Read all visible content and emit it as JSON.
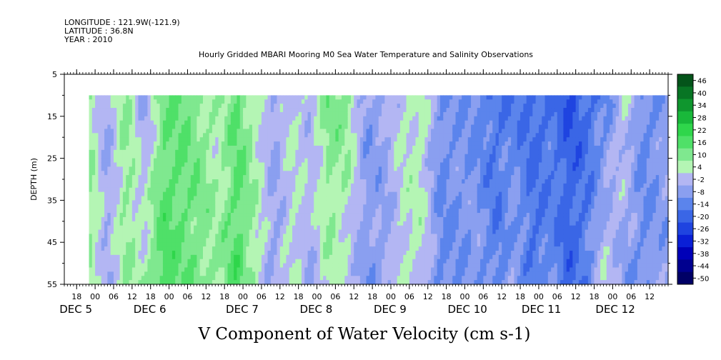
{
  "header": {
    "longitude": "LONGITUDE : 121.9W(-121.9)",
    "latitude": "LATITUDE : 36.8N",
    "year": "YEAR : 2010"
  },
  "chart_data": {
    "type": "heatmap",
    "title": "Hourly Gridded MBARI Mooring M0 Sea Water Temperature and Salinity Observations",
    "variable_title": "V Component of Water Velocity (cm s-1)",
    "ylabel": "DEPTH (m)",
    "y_ticks": [
      5,
      15,
      25,
      35,
      45,
      55
    ],
    "y_range": [
      5,
      55
    ],
    "y_inverted": true,
    "data_depth_range": [
      10,
      55
    ],
    "time_range_hours": [
      -10,
      186
    ],
    "data_time_range_hours": [
      -2,
      186
    ],
    "hour_ticks": [
      "18",
      "00",
      "06",
      "12",
      "18",
      "00",
      "06",
      "12",
      "18",
      "00",
      "06",
      "12",
      "18",
      "00",
      "06",
      "12",
      "18",
      "00",
      "06",
      "12",
      "18",
      "00",
      "06",
      "12",
      "18",
      "00",
      "06",
      "12",
      "18",
      "00",
      "06",
      "12"
    ],
    "hour_tick_positions": [
      -6,
      0,
      6,
      12,
      18,
      24,
      30,
      36,
      42,
      48,
      54,
      60,
      66,
      72,
      78,
      84,
      90,
      96,
      102,
      108,
      114,
      120,
      126,
      132,
      138,
      144,
      150,
      156,
      162,
      168,
      174,
      180
    ],
    "date_labels": [
      {
        "text": "DEC  5",
        "hour": -6
      },
      {
        "text": "DEC  6",
        "hour": 18
      },
      {
        "text": "DEC  7",
        "hour": 48
      },
      {
        "text": "DEC  8",
        "hour": 72
      },
      {
        "text": "DEC  9",
        "hour": 96
      },
      {
        "text": "DEC 10",
        "hour": 120
      },
      {
        "text": "DEC 11",
        "hour": 144
      },
      {
        "text": "DEC 12",
        "hour": 168
      }
    ],
    "colorbar_levels": [
      -50,
      -44,
      -38,
      -32,
      -26,
      -20,
      -14,
      -8,
      -2,
      4,
      10,
      16,
      22,
      28,
      34,
      40,
      46
    ],
    "colorbar_labels": [
      "46",
      "40",
      "34",
      "28",
      "22",
      "16",
      "10",
      "4",
      "-2",
      "-8",
      "-14",
      "-20",
      "-26",
      "-32",
      "-38",
      "-44",
      "-50"
    ],
    "velocity_profile": {
      "hours": [
        -2,
        4,
        10,
        16,
        22,
        28,
        34,
        40,
        46,
        52,
        58,
        64,
        70,
        76,
        82,
        88,
        94,
        100,
        106,
        112,
        118,
        124,
        130,
        136,
        142,
        148,
        154,
        160,
        166,
        172,
        178,
        184
      ],
      "values_top": [
        10,
        -3,
        12,
        -4,
        14,
        16,
        12,
        6,
        16,
        8,
        -3,
        4,
        2,
        14,
        12,
        -5,
        -3,
        4,
        8,
        -8,
        -6,
        -10,
        -14,
        -12,
        -16,
        -14,
        -20,
        -15,
        -10,
        6,
        -10,
        -6
      ],
      "values_bottom": [
        12,
        -2,
        10,
        8,
        20,
        16,
        14,
        10,
        20,
        8,
        -4,
        6,
        -2,
        8,
        2,
        -6,
        -4,
        6,
        4,
        -10,
        -8,
        -4,
        -12,
        -2,
        -14,
        -8,
        -16,
        -10,
        6,
        -6,
        -8,
        -4
      ]
    }
  }
}
